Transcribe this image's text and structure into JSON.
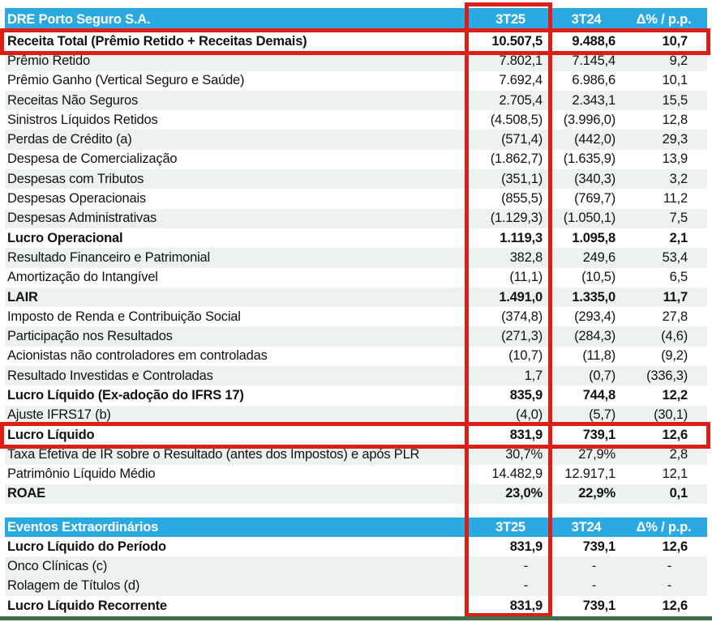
{
  "colors": {
    "header_blue": "#2BA9E3",
    "highlight_red": "#DD1E17",
    "row_shade": "#EDF2EE",
    "bottom_line_green": "#3F6E4B",
    "header_text": "#FFFFFF",
    "body_text": "#121212"
  },
  "sections": [
    {
      "title": "DRE Porto Seguro S.A.",
      "col1": "3T25",
      "col2": "3T24",
      "col3": "Δ% / p.p.",
      "rows": [
        {
          "label": "Receita Total (Prêmio Retido + Receitas Demais)",
          "v1": "10.507,5",
          "v2": "9.488,6",
          "v3": "10,7",
          "bold": true,
          "highlighted": true
        },
        {
          "label": "Prêmio Retido",
          "v1": "7.802,1",
          "v2": "7.145,4",
          "v3": "9,2"
        },
        {
          "label": "Prêmio Ganho (Vertical Seguro e Saúde)",
          "v1": "7.692,4",
          "v2": "6.986,6",
          "v3": "10,1"
        },
        {
          "label": "Receitas Não Seguros",
          "v1": "2.705,4",
          "v2": "2.343,1",
          "v3": "15,5"
        },
        {
          "label": "Sinistros Líquidos Retidos",
          "v1": "(4.508,5)",
          "v2": "(3.996,0)",
          "v3": "12,8"
        },
        {
          "label": "Perdas de Crédito (a)",
          "v1": "(571,4)",
          "v2": "(442,0)",
          "v3": "29,3"
        },
        {
          "label": "Despesa de Comercialização",
          "v1": "(1.862,7)",
          "v2": "(1.635,9)",
          "v3": "13,9"
        },
        {
          "label": "Despesas com Tributos",
          "v1": "(351,1)",
          "v2": "(340,3)",
          "v3": "3,2"
        },
        {
          "label": "Despesas Operacionais",
          "v1": "(855,5)",
          "v2": "(769,7)",
          "v3": "11,2"
        },
        {
          "label": "Despesas Administrativas",
          "v1": "(1.129,3)",
          "v2": "(1.050,1)",
          "v3": "7,5"
        },
        {
          "label": "Lucro Operacional",
          "v1": "1.119,3",
          "v2": "1.095,8",
          "v3": "2,1",
          "bold": true
        },
        {
          "label": "Resultado Financeiro e Patrimonial",
          "v1": "382,8",
          "v2": "249,6",
          "v3": "53,4"
        },
        {
          "label": "Amortização do Intangível",
          "v1": "(11,1)",
          "v2": "(10,5)",
          "v3": "6,5"
        },
        {
          "label": "LAIR",
          "v1": "1.491,0",
          "v2": "1.335,0",
          "v3": "11,7",
          "bold": true
        },
        {
          "label": "Imposto de Renda e Contribuição Social",
          "v1": "(374,8)",
          "v2": "(293,4)",
          "v3": "27,8"
        },
        {
          "label": "Participação nos Resultados",
          "v1": "(271,3)",
          "v2": "(284,3)",
          "v3": "(4,6)"
        },
        {
          "label": "Acionistas não controladores em controladas",
          "v1": "(10,7)",
          "v2": "(11,8)",
          "v3": "(9,2)"
        },
        {
          "label": "Resultado Investidas e Controladas",
          "v1": "1,7",
          "v2": "(0,7)",
          "v3": "(336,3)"
        },
        {
          "label": "Lucro Líquido (Ex-adoção do IFRS 17)",
          "v1": "835,9",
          "v2": "744,8",
          "v3": "12,2",
          "bold": true
        },
        {
          "label": "Ajuste IFRS17 (b)",
          "v1": "(4,0)",
          "v2": "(5,7)",
          "v3": "(30,1)"
        },
        {
          "label": "Lucro Líquido",
          "v1": "831,9",
          "v2": "739,1",
          "v3": "12,6",
          "bold": true,
          "highlighted": true
        },
        {
          "label": "Taxa Efetiva de IR sobre o Resultado (antes dos Impostos) e após PLR",
          "v1": "30,7%",
          "v2": "27,9%",
          "v3": "2,8"
        },
        {
          "label": "Patrimônio Líquido Médio",
          "v1": "14.482,9",
          "v2": "12.917,1",
          "v3": "12,1"
        },
        {
          "label": "ROAE",
          "v1": "23,0%",
          "v2": "22,9%",
          "v3": "0,1",
          "bold": true
        }
      ]
    },
    {
      "title": "Eventos Extraordinários",
      "col1": "3T25",
      "col2": "3T24",
      "col3": "Δ% / p.p.",
      "rows": [
        {
          "label": "Lucro Líquido do Período",
          "v1": "831,9",
          "v2": "739,1",
          "v3": "12,6",
          "bold": true
        },
        {
          "label": "Onco Clínicas (c)",
          "v1": "-",
          "v2": "-",
          "v3": "-"
        },
        {
          "label": "Rolagem de Títulos (d)",
          "v1": "-",
          "v2": "-",
          "v3": "-"
        },
        {
          "label": "Lucro Líquido Recorrente",
          "v1": "831,9",
          "v2": "739,1",
          "v3": "12,6",
          "bold": true
        }
      ]
    }
  ]
}
